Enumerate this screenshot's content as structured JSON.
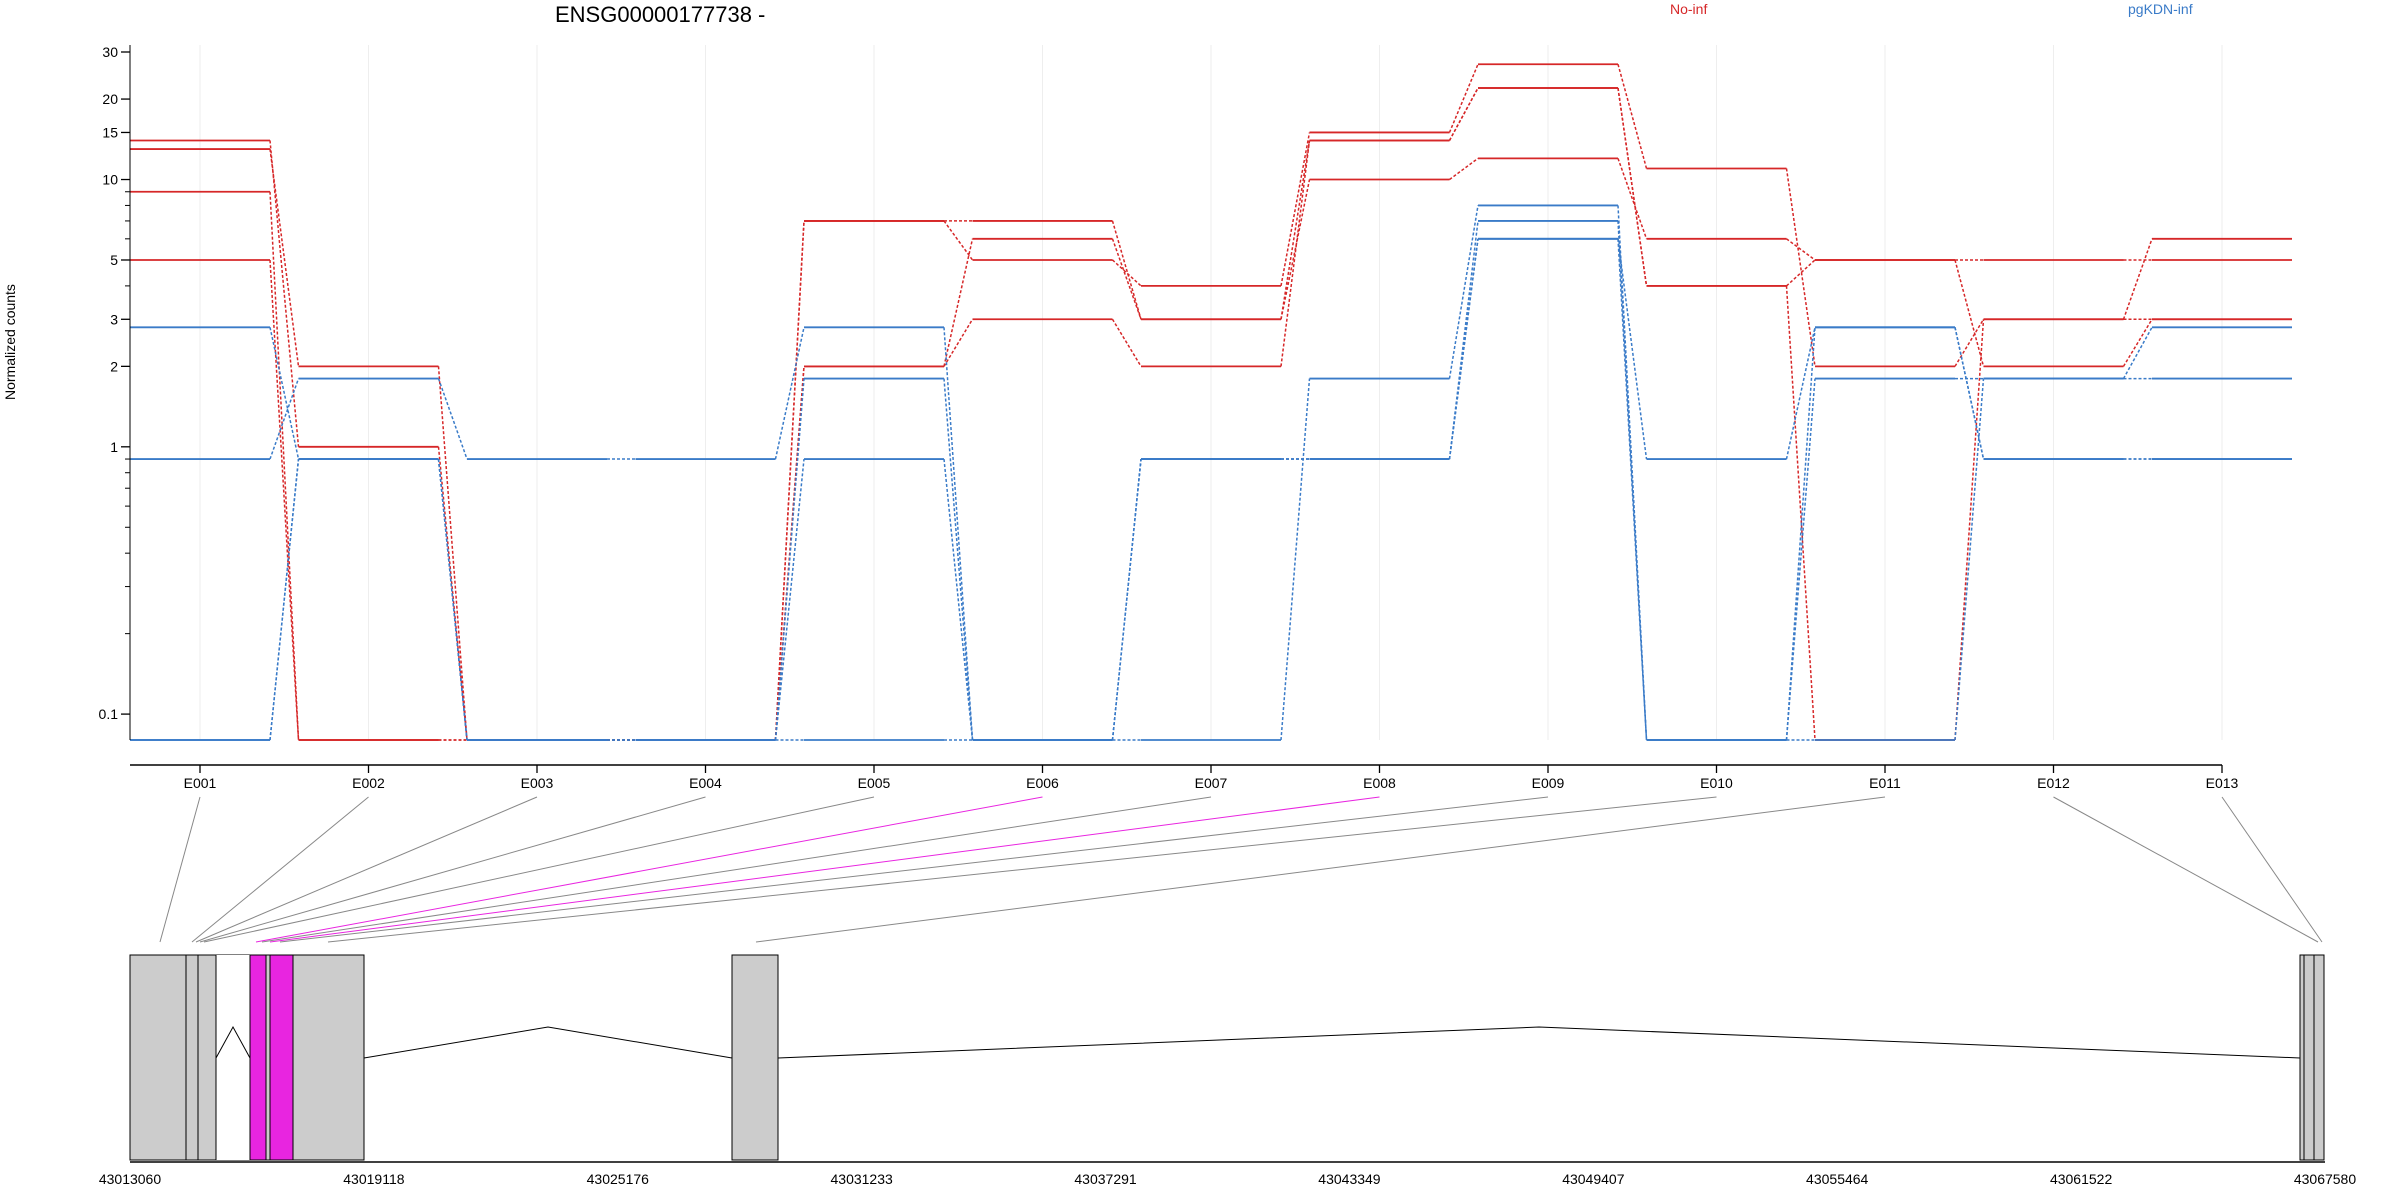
{
  "chart_data": {
    "type": "line",
    "title": "ENSG00000177738 -",
    "ylabel": "Normalized counts",
    "yscale": "log",
    "ylim": [
      0.08,
      32
    ],
    "yticks": [
      0.1,
      1,
      2,
      3,
      5,
      10,
      15,
      20,
      30
    ],
    "yticklabels": [
      "0.1",
      "1",
      "2",
      "3",
      "5",
      "10",
      "15",
      "20",
      "30"
    ],
    "categories": [
      "E001",
      "E002",
      "E003",
      "E004",
      "E005",
      "E006",
      "E007",
      "E008",
      "E009",
      "E010",
      "E011",
      "E012",
      "E013"
    ],
    "legend": [
      {
        "name": "No-inf",
        "color": "#d62728"
      },
      {
        "name": "pgKDN-inf",
        "color": "#3a7bc8"
      }
    ],
    "series": [
      {
        "group": "No-inf",
        "color": "#d62728",
        "values": [
          14,
          1,
          0.08,
          0.08,
          7,
          7,
          3,
          14,
          22,
          4,
          5,
          5,
          5
        ]
      },
      {
        "group": "No-inf",
        "color": "#d62728",
        "values": [
          13,
          2,
          0.08,
          0.08,
          7,
          5,
          4,
          15,
          27,
          11,
          2,
          3,
          6
        ]
      },
      {
        "group": "No-inf",
        "color": "#d62728",
        "values": [
          9,
          0.08,
          0.08,
          0.08,
          2,
          6,
          3,
          10,
          12,
          6,
          5,
          2,
          3
        ]
      },
      {
        "group": "No-inf",
        "color": "#d62728",
        "values": [
          5,
          0.08,
          0.08,
          0.08,
          2,
          3,
          2,
          14,
          22,
          4,
          0.08,
          3,
          3
        ]
      },
      {
        "group": "pgKDN-inf",
        "color": "#3a7bc8",
        "values": [
          2.8,
          0.9,
          0.08,
          0.08,
          1.8,
          0.08,
          0.9,
          0.9,
          6,
          0.9,
          2.8,
          0.9,
          0.9
        ]
      },
      {
        "group": "pgKDN-inf",
        "color": "#3a7bc8",
        "values": [
          0.9,
          1.8,
          0.9,
          0.9,
          2.8,
          0.08,
          0.9,
          0.9,
          7,
          0.08,
          1.8,
          1.8,
          2.8
        ]
      },
      {
        "group": "pgKDN-inf",
        "color": "#3a7bc8",
        "values": [
          0.08,
          0.9,
          0.08,
          0.08,
          0.9,
          0.08,
          0.08,
          1.8,
          8,
          0.08,
          0.08,
          1.8,
          1.8
        ]
      },
      {
        "group": "pgKDN-inf",
        "color": "#3a7bc8",
        "values": [
          0.08,
          0.9,
          0.08,
          0.08,
          0.08,
          0.08,
          0.9,
          0.9,
          6,
          0.08,
          2.8,
          0.9,
          0.9
        ]
      }
    ],
    "genomic_axis": {
      "ticks": [
        43013060,
        43019118,
        43025176,
        43031233,
        43037291,
        43043349,
        43049407,
        43055464,
        43061522,
        43067580
      ],
      "range": [
        43013060,
        43067580
      ]
    },
    "highlight_color": "#e825e0",
    "exon_color": "#cccccc",
    "exons": [
      {
        "id": "E001",
        "highlight": false
      },
      {
        "id": "E002",
        "highlight": false
      },
      {
        "id": "E003",
        "highlight": false
      },
      {
        "id": "E004",
        "highlight": false
      },
      {
        "id": "E005",
        "highlight": false
      },
      {
        "id": "E006",
        "highlight": true
      },
      {
        "id": "E007",
        "highlight": false
      },
      {
        "id": "E008",
        "highlight": true
      },
      {
        "id": "E009",
        "highlight": false
      },
      {
        "id": "E010",
        "highlight": false
      },
      {
        "id": "E011",
        "highlight": false
      },
      {
        "id": "E012",
        "highlight": false
      },
      {
        "id": "E013",
        "highlight": false
      }
    ]
  }
}
